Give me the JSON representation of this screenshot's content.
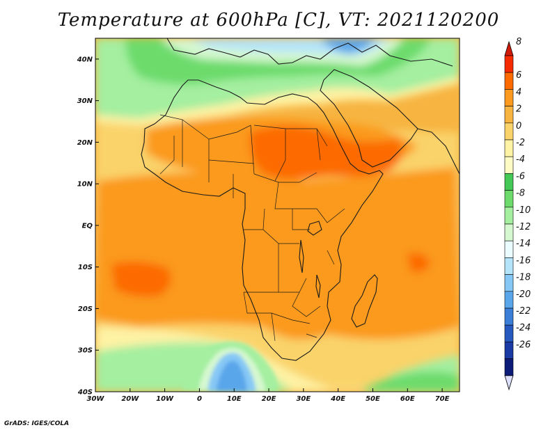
{
  "title": "Temperature at 600hPa [C], VT: 2021120200",
  "credit": "GrADS: IGES/COLA",
  "map": {
    "lon_range": [
      -30,
      75
    ],
    "lat_range": [
      -40,
      45
    ],
    "lon_ticks": [
      {
        "value": -30,
        "label": "30W"
      },
      {
        "value": -20,
        "label": "20W"
      },
      {
        "value": -10,
        "label": "10W"
      },
      {
        "value": 0,
        "label": "0"
      },
      {
        "value": 10,
        "label": "10E"
      },
      {
        "value": 20,
        "label": "20E"
      },
      {
        "value": 30,
        "label": "30E"
      },
      {
        "value": 40,
        "label": "40E"
      },
      {
        "value": 50,
        "label": "50E"
      },
      {
        "value": 60,
        "label": "60E"
      },
      {
        "value": 70,
        "label": "70E"
      }
    ],
    "lat_ticks": [
      {
        "value": 40,
        "label": "40N"
      },
      {
        "value": 30,
        "label": "30N"
      },
      {
        "value": 20,
        "label": "20N"
      },
      {
        "value": 10,
        "label": "10N"
      },
      {
        "value": 0,
        "label": "EQ"
      },
      {
        "value": -10,
        "label": "10S"
      },
      {
        "value": -20,
        "label": "20S"
      },
      {
        "value": -30,
        "label": "30S"
      },
      {
        "value": -40,
        "label": "40S"
      }
    ]
  },
  "colorbar": {
    "labels": [
      "8",
      "6",
      "4",
      "2",
      "0",
      "-2",
      "-4",
      "-6",
      "-8",
      "-10",
      "-12",
      "-14",
      "-16",
      "-18",
      "-20",
      "-22",
      "-24",
      "-26"
    ],
    "colors": [
      "#f52a00",
      "#fc6a00",
      "#fb9a1f",
      "#f7b441",
      "#fad36a",
      "#fef2a4",
      "#fefcc4",
      "#44c956",
      "#6cdb6c",
      "#a4efa0",
      "#d6f8d0",
      "#eafcff",
      "#b4e4fa",
      "#86c8f5",
      "#5aa6eb",
      "#3a7ed8",
      "#2559c0",
      "#1a3ba4",
      "#0c1a78"
    ],
    "top_color": "#d21a08",
    "bottom_color": "#dce0fc"
  }
}
